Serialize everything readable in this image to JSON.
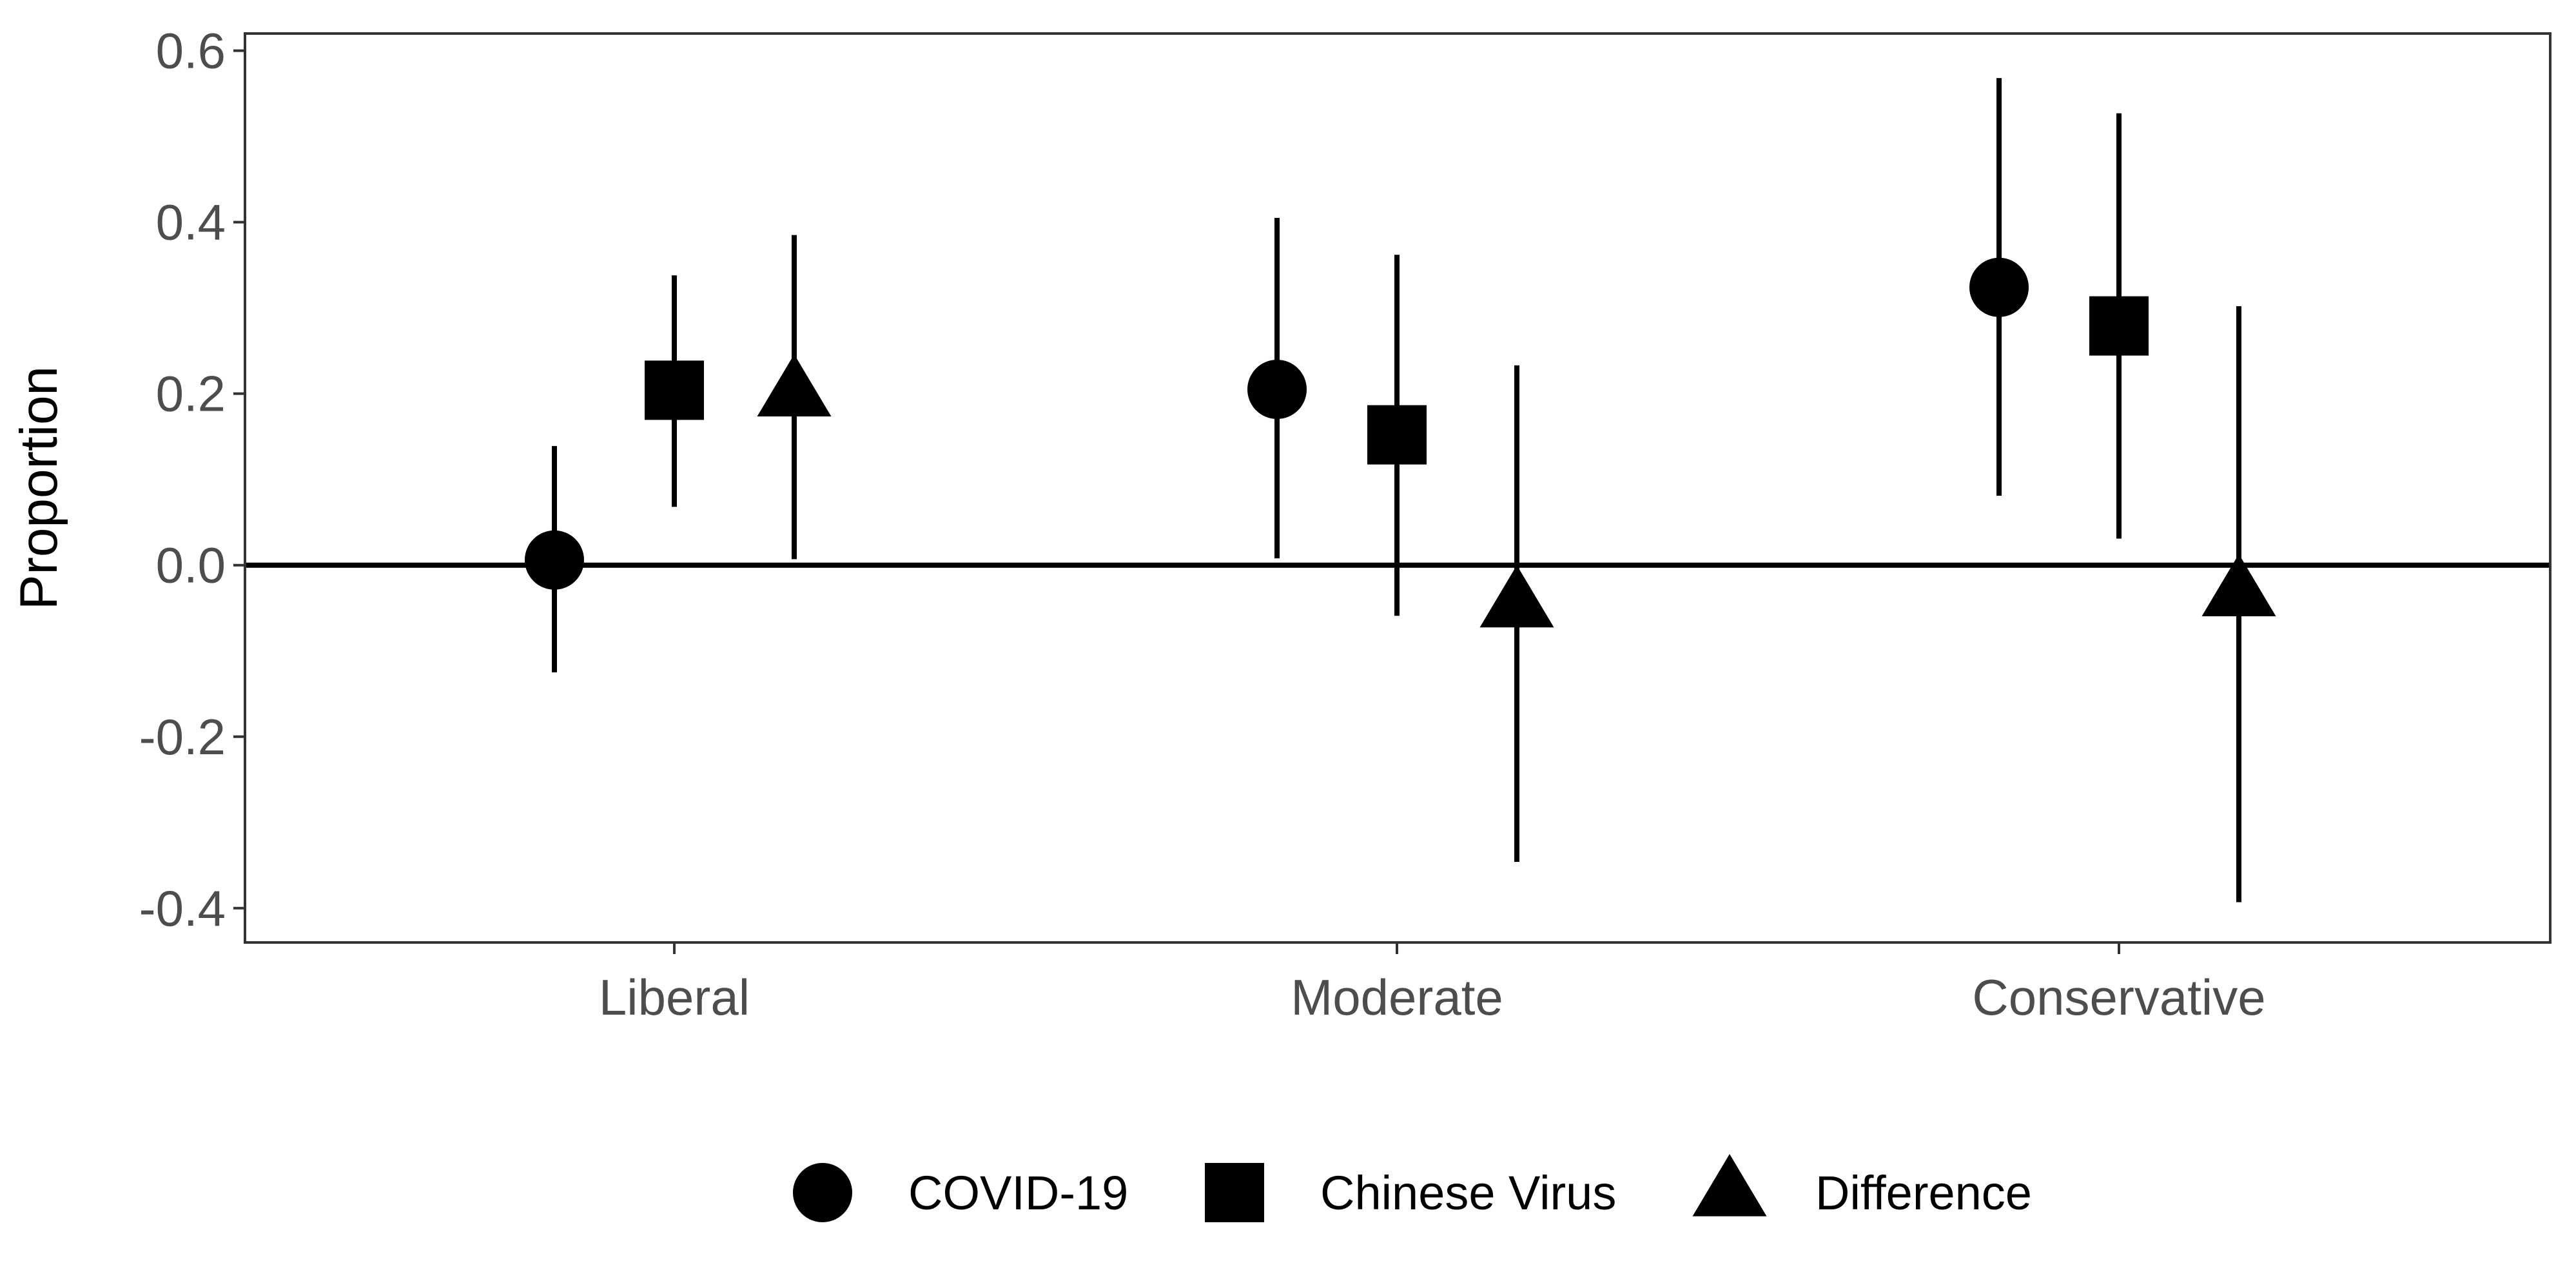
{
  "chart_data": {
    "type": "scatter",
    "title": "",
    "xlabel": "",
    "ylabel": "Proportion",
    "categories": [
      "Liberal",
      "Moderate",
      "Conservative"
    ],
    "ylim": [
      -0.44,
      0.62
    ],
    "yticks": [
      "0.6",
      "0.4",
      "0.2",
      "0.0",
      "-0.2",
      "-0.4"
    ],
    "ytick_values": [
      0.6,
      0.4,
      0.2,
      0.0,
      -0.2,
      -0.4
    ],
    "reference_line": 0,
    "grid": false,
    "legend_position": "bottom",
    "series": [
      {
        "name": "COVID-19",
        "shape": "circle",
        "estimate": [
          0.006,
          0.205,
          0.324
        ],
        "lower": [
          -0.125,
          0.008,
          0.081
        ],
        "upper": [
          0.139,
          0.405,
          0.568
        ]
      },
      {
        "name": "Chinese Virus",
        "shape": "square",
        "estimate": [
          0.204,
          0.152,
          0.279
        ],
        "lower": [
          0.068,
          -0.059,
          0.031
        ],
        "upper": [
          0.338,
          0.362,
          0.527
        ]
      },
      {
        "name": "Difference",
        "shape": "triangle",
        "estimate": [
          0.201,
          -0.045,
          -0.032
        ],
        "lower": [
          0.007,
          -0.346,
          -0.393
        ],
        "upper": [
          0.385,
          0.233,
          0.302
        ]
      }
    ]
  }
}
